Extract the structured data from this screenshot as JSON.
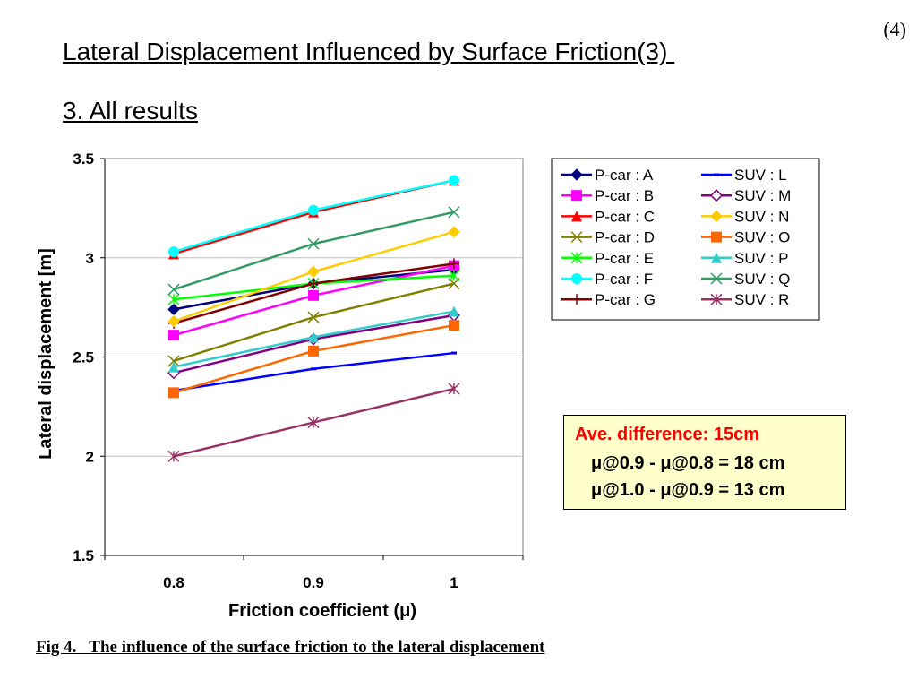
{
  "page_number": "(4)",
  "title": "Lateral Displacement Influenced by Surface Friction(3) ",
  "subtitle": "3. All results",
  "note": {
    "heading": "Ave. difference: 15cm",
    "line1": "μ@0.9 - μ@0.8 = 18 cm",
    "line2": "μ@1.0 - μ@0.9 = 13 cm",
    "heading_color": "#ff0000",
    "background": "#ffffcc"
  },
  "caption": "Fig 4.   The influence of the surface friction to the lateral displacement",
  "chart_data": {
    "type": "line",
    "xlabel": "Friction coefficient (μ)",
    "ylabel": "Lateral displacement [m]",
    "categories": [
      "0.8",
      "0.9",
      "1"
    ],
    "yticks": [
      "1.5",
      "2",
      "2.5",
      "3",
      "3.5"
    ],
    "ylim": [
      1.5,
      3.5
    ],
    "grid": "horizontal",
    "legend_position": "top-right",
    "series": [
      {
        "name": "P-car : A",
        "values": [
          2.74,
          2.87,
          2.94
        ],
        "color": "#000080",
        "marker": "diamond"
      },
      {
        "name": "P-car : B",
        "values": [
          2.61,
          2.81,
          2.96
        ],
        "color": "#ff00ff",
        "marker": "square"
      },
      {
        "name": "P-car : C",
        "values": [
          3.02,
          3.23,
          3.39
        ],
        "color": "#ff0000",
        "marker": "triangle"
      },
      {
        "name": "P-car : D",
        "values": [
          2.48,
          2.7,
          2.87
        ],
        "color": "#808000",
        "marker": "x"
      },
      {
        "name": "P-car : E",
        "values": [
          2.79,
          2.87,
          2.91
        ],
        "color": "#00ff00",
        "marker": "star"
      },
      {
        "name": "P-car : F",
        "values": [
          3.03,
          3.24,
          3.39
        ],
        "color": "#00ffff",
        "marker": "circle"
      },
      {
        "name": "P-car : G",
        "values": [
          2.67,
          2.87,
          2.97
        ],
        "color": "#800000",
        "marker": "plus"
      },
      {
        "name": "SUV : L",
        "values": [
          2.33,
          2.44,
          2.52
        ],
        "color": "#0000ff",
        "marker": "dash"
      },
      {
        "name": "SUV : M",
        "values": [
          2.42,
          2.59,
          2.71
        ],
        "color": "#800080",
        "marker": "diamond-open"
      },
      {
        "name": "SUV : N",
        "values": [
          2.68,
          2.93,
          3.13
        ],
        "color": "#ffcc00",
        "marker": "diamond"
      },
      {
        "name": "SUV : O",
        "values": [
          2.32,
          2.53,
          2.66
        ],
        "color": "#ff6600",
        "marker": "square"
      },
      {
        "name": "SUV : P",
        "values": [
          2.45,
          2.6,
          2.73
        ],
        "color": "#33cccc",
        "marker": "triangle"
      },
      {
        "name": "SUV : Q",
        "values": [
          2.84,
          3.07,
          3.23
        ],
        "color": "#339966",
        "marker": "x"
      },
      {
        "name": "SUV : R",
        "values": [
          2.0,
          2.17,
          2.34
        ],
        "color": "#993366",
        "marker": "star"
      }
    ]
  }
}
